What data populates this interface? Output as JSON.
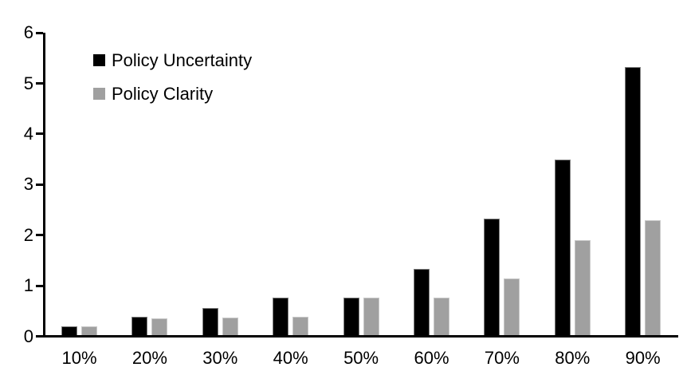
{
  "chart_data": {
    "type": "bar",
    "title": "",
    "xlabel": "",
    "ylabel": "",
    "categories": [
      "10%",
      "20%",
      "30%",
      "40%",
      "50%",
      "60%",
      "70%",
      "80%",
      "90%"
    ],
    "series": [
      {
        "name": "Policy Uncertainty",
        "color": "#000000",
        "values": [
          0.19,
          0.38,
          0.56,
          0.76,
          0.77,
          1.33,
          2.32,
          3.5,
          5.33
        ]
      },
      {
        "name": "Policy Clarity",
        "color": "#a0a0a0",
        "values": [
          0.19,
          0.36,
          0.37,
          0.38,
          0.77,
          0.76,
          1.15,
          1.9,
          2.3
        ]
      }
    ],
    "yticks": [
      "0",
      "1",
      "2",
      "3",
      "4",
      "5",
      "6"
    ],
    "ylim": [
      0,
      6
    ],
    "grid": false,
    "legend_position": "top-left-inside",
    "background_color": "#ffffff",
    "axis_color": "#000000"
  }
}
